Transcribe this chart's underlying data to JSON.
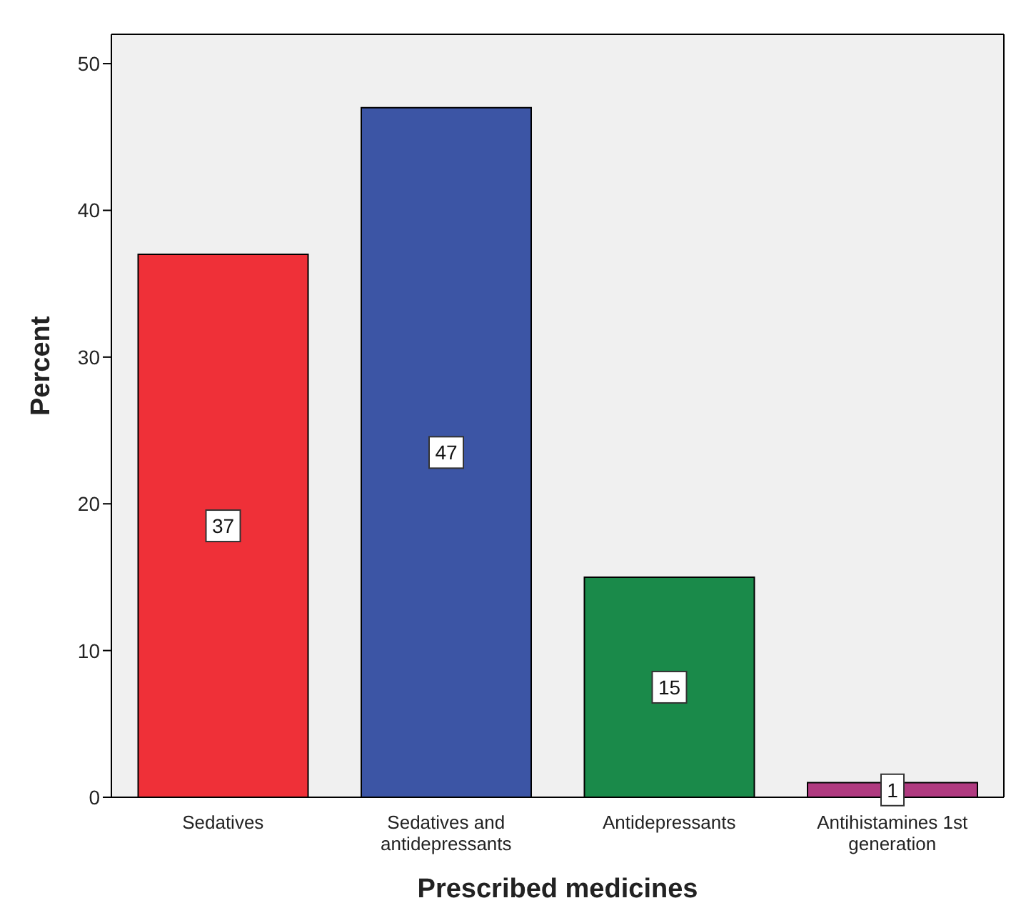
{
  "chart_data": {
    "type": "bar",
    "xlabel": "Prescribed medicines",
    "ylabel": "Percent",
    "categories": [
      "Sedatives",
      "Sedatives and antidepressants",
      "Antidepressants",
      "Antihistamines 1st generation"
    ],
    "values": [
      37,
      47,
      15,
      1
    ],
    "colors": [
      "#ef3038",
      "#3c55a5",
      "#1a8a4a",
      "#b03a80"
    ],
    "ylim": [
      0,
      52
    ],
    "yticks": [
      0,
      10,
      20,
      30,
      40,
      50
    ],
    "grid": false,
    "data_labels": true
  }
}
